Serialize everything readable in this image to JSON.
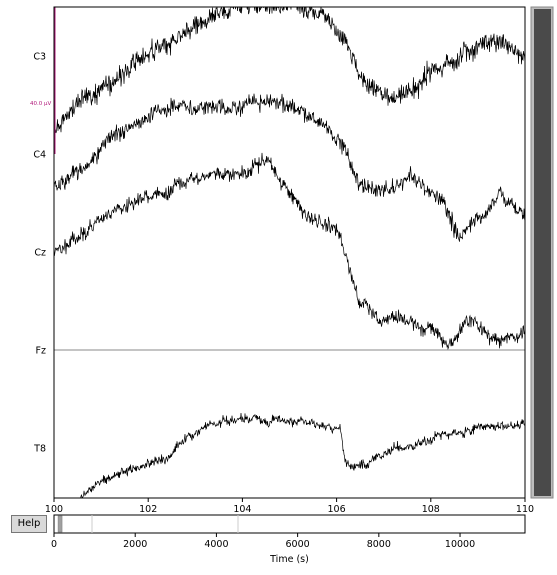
{
  "channels": [
    {
      "name": "C3"
    },
    {
      "name": "C4"
    },
    {
      "name": "Cz"
    },
    {
      "name": "Fz"
    },
    {
      "name": "T8"
    }
  ],
  "scale_bar": {
    "label": "40.0 µV",
    "color": "#b0187a"
  },
  "main_axis": {
    "xmin": 100,
    "xmax": 110,
    "ticks": [
      "100",
      "102",
      "104",
      "106",
      "108",
      "110"
    ]
  },
  "overview": {
    "xmin": 0,
    "xmax": 11600,
    "ticks": [
      "0",
      "2000",
      "4000",
      "6000",
      "8000",
      "10000"
    ],
    "xlabel": "Time (s)",
    "view_start": 100,
    "view_end": 110
  },
  "help_button": {
    "label": "Help"
  },
  "colors": {
    "trace": "#000000",
    "scrollbar_thumb": "#4a4a4a",
    "scrollbar_track": "#bcbcbc",
    "view_box": "#a0a0a0",
    "axis": "#000000"
  }
}
